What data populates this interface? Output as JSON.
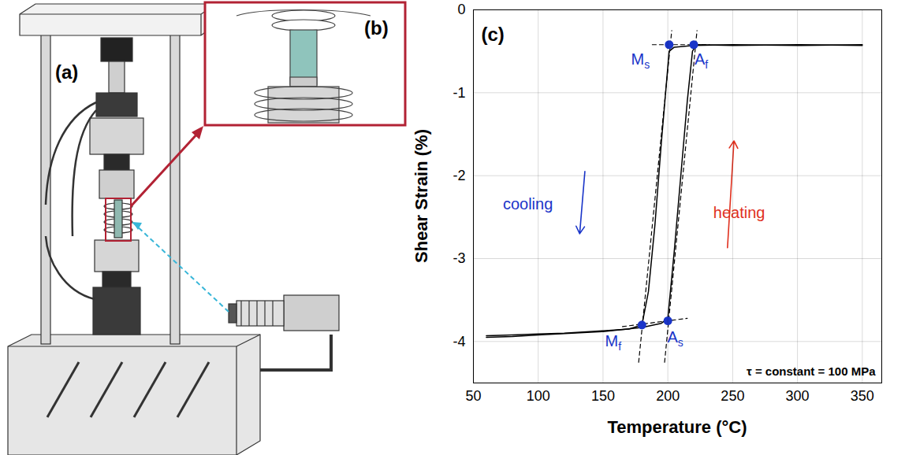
{
  "panels": {
    "a": {
      "label": "(a)"
    },
    "b": {
      "label": "(b)"
    }
  },
  "chart_data": {
    "type": "line",
    "panel_label": "(c)",
    "x_label": "Temperature (°C)",
    "y_label": "Shear Strain (%)",
    "xlim": [
      50,
      365
    ],
    "xticks": [
      50,
      100,
      150,
      200,
      250,
      300,
      350
    ],
    "ylim": [
      -4.5,
      0
    ],
    "yticks": [
      0,
      -1,
      -2,
      -3,
      -4
    ],
    "grid": true,
    "series": [
      {
        "x": [
          350,
          300,
          250,
          220,
          205,
          201,
          195,
          190,
          185,
          180,
          170,
          150,
          120,
          100,
          80,
          60
        ],
        "values": [
          -0.42,
          -0.43,
          -0.42,
          -0.43,
          -0.45,
          -0.5,
          -1.6,
          -2.6,
          -3.4,
          -3.8,
          -3.85,
          -3.87,
          -3.9,
          -3.91,
          -3.92,
          -3.93
        ],
        "color": "#000000",
        "line_style": "solid"
      },
      {
        "x": [
          60,
          80,
          100,
          150,
          180,
          195,
          200,
          205,
          210,
          215,
          219,
          222,
          250,
          300,
          350
        ],
        "values": [
          -3.95,
          -3.94,
          -3.92,
          -3.88,
          -3.83,
          -3.78,
          -3.72,
          -2.9,
          -2.0,
          -1.1,
          -0.5,
          -0.42,
          -0.43,
          -0.42,
          -0.43
        ],
        "color": "#000000",
        "line_style": "solid"
      }
    ],
    "tangent_lines": [
      {
        "x": [
          177.5,
          203
        ],
        "values": [
          -4.25,
          -0.25
        ],
        "color": "#000000",
        "line_style": "dashed"
      },
      {
        "x": [
          197.5,
          222.5
        ],
        "values": [
          -4.25,
          -0.25
        ],
        "color": "#000000",
        "line_style": "dashed"
      },
      {
        "x": [
          188,
          232
        ],
        "values": [
          -0.42,
          -0.42
        ],
        "color": "#000000",
        "line_style": "dashed"
      },
      {
        "x": [
          165,
          215
        ],
        "values": [
          -3.82,
          -3.72
        ],
        "color": "#000000",
        "line_style": "dashed"
      }
    ],
    "transition_points": [
      {
        "label": "M",
        "subscript": "s",
        "x": 201,
        "y": -0.42,
        "color": "#1a35c9"
      },
      {
        "label": "A",
        "subscript": "f",
        "x": 220,
        "y": -0.42,
        "color": "#1a35c9"
      },
      {
        "label": "M",
        "subscript": "f",
        "x": 180,
        "y": -3.8,
        "color": "#1a35c9"
      },
      {
        "label": "A",
        "subscript": "s",
        "x": 200,
        "y": -3.75,
        "color": "#1a35c9"
      }
    ],
    "annotations": [
      {
        "text": "cooling",
        "x": 92,
        "y": -2.35,
        "color": "#1a35c9",
        "arrow": {
          "x1": 136,
          "y1": -1.95,
          "x2": 132,
          "y2": -2.7
        }
      },
      {
        "text": "heating",
        "x": 255,
        "y": -2.45,
        "color": "#e0301e",
        "arrow": {
          "x1": 246,
          "y1": -2.87,
          "x2": 251,
          "y2": -1.58
        }
      }
    ],
    "stress_note": "τ = constant = 100 MPa"
  }
}
